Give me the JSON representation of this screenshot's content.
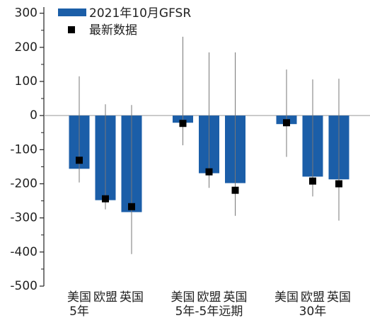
{
  "chart_data": {
    "type": "bar",
    "categories": [
      "美国",
      "欧盟",
      "英国",
      "美国",
      "欧盟",
      "英国",
      "美国",
      "欧盟",
      "英国"
    ],
    "groups": [
      "5年",
      "5年-5年远期",
      "30年"
    ],
    "series": [
      {
        "name": "2021年10月GFSR",
        "color": "#1b5ea8",
        "values": [
          -156,
          -248,
          -283,
          -21,
          -169,
          -198,
          -25,
          -179,
          -187
        ],
        "error_low": [
          -196,
          -275,
          -406,
          -87,
          -212,
          -294,
          -121,
          -237,
          -308
        ],
        "error_high": [
          115,
          33,
          31,
          231,
          185,
          185,
          135,
          106,
          108
        ]
      },
      {
        "name": "最新数据",
        "color": "#000000",
        "values": [
          -131,
          -244,
          -267,
          -23,
          -165,
          -219,
          -21,
          -192,
          -200
        ]
      }
    ],
    "ylim": [
      -500,
      318
    ],
    "yticks": [
      300,
      200,
      100,
      0,
      -100,
      -200,
      -300,
      -400,
      -500
    ],
    "yticks_minor": [
      250,
      150,
      50,
      -50,
      -150,
      -250,
      -350,
      -450
    ]
  }
}
